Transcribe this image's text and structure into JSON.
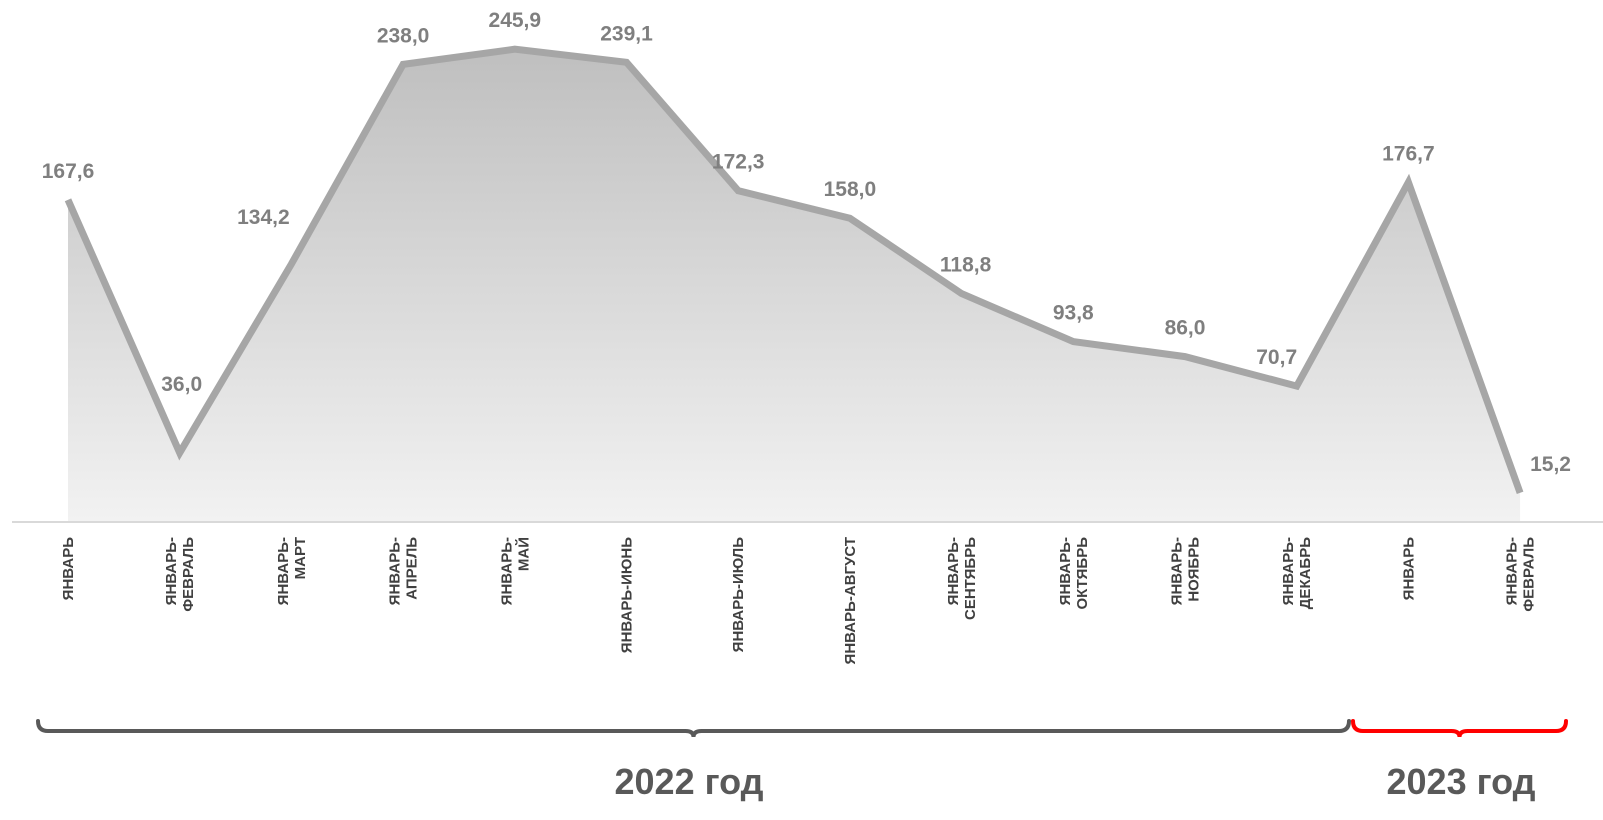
{
  "chart_data": {
    "type": "area",
    "categories": [
      [
        "ЯНВАРЬ"
      ],
      [
        "ЯНВАРЬ-",
        "ФЕВРАЛЬ"
      ],
      [
        "ЯНВАРЬ-",
        "МАРТ"
      ],
      [
        "ЯНВАРЬ-",
        "АПРЕЛЬ"
      ],
      [
        "ЯНВАРЬ-",
        "МАЙ"
      ],
      [
        "ЯНВАРЬ-ИЮНЬ"
      ],
      [
        "ЯНВАРЬ-ИЮЛЬ"
      ],
      [
        "ЯНВАРЬ-АВГУСТ"
      ],
      [
        "ЯНВАРЬ-",
        "СЕНТЯБРЬ"
      ],
      [
        "ЯНВАРЬ-",
        "ОКТЯБРЬ"
      ],
      [
        "ЯНВАРЬ-",
        "НОЯБРЬ"
      ],
      [
        "ЯНВАРЬ-",
        "ДЕКАБРЬ"
      ],
      [
        "ЯНВАРЬ"
      ],
      [
        "ЯНВАРЬ-",
        "ФЕВРАЛЬ"
      ]
    ],
    "values": [
      167.6,
      36.0,
      134.2,
      238.0,
      245.9,
      239.1,
      172.3,
      158.0,
      118.8,
      93.8,
      86.0,
      70.7,
      176.7,
      15.2
    ],
    "value_labels": [
      "167,6",
      "36,0",
      "134,2",
      "238,0",
      "245,9",
      "239,1",
      "172,3",
      "158,0",
      "118,8",
      "93,8",
      "86,0",
      "70,7",
      "176,7",
      "15,2"
    ],
    "groups": [
      {
        "label": "2022 год",
        "from": 0,
        "to": 11,
        "color": "#595959"
      },
      {
        "label": "2023 год",
        "from": 12,
        "to": 13,
        "color": "#ff0000"
      }
    ],
    "colors": {
      "line": "#a6a6a6",
      "fill_top": "#bfbfbf",
      "fill_bottom": "#f2f2f2",
      "labels": "#7f7f7f",
      "axis": "#d9d9d9"
    },
    "ylim": [
      0,
      250
    ],
    "grid": false,
    "legend": "none"
  }
}
